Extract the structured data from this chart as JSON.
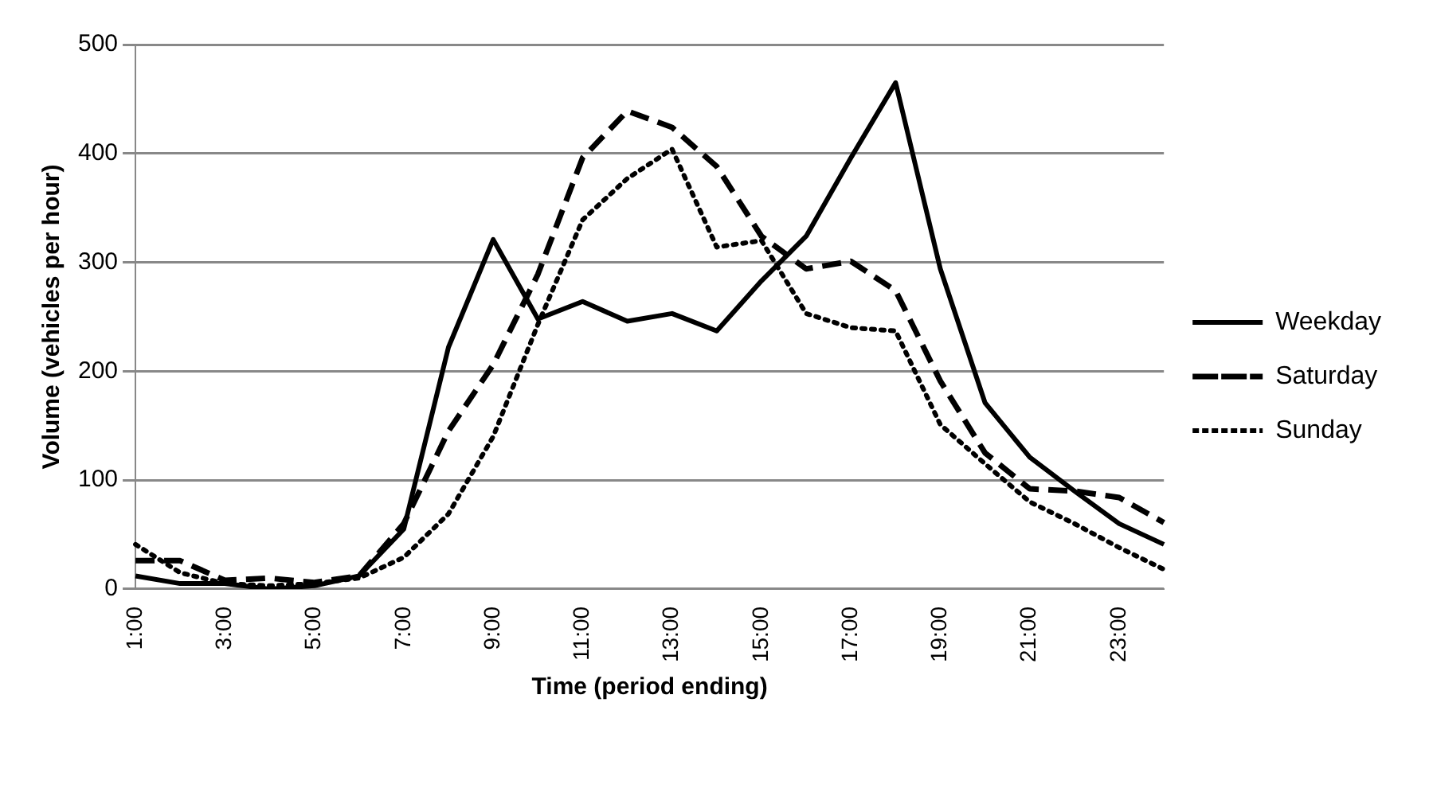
{
  "chart_data": {
    "type": "line",
    "xlabel": "Time (period ending)",
    "ylabel": "Volume (vehicles per hour)",
    "categories": [
      "1:00",
      null,
      "3:00",
      null,
      "5:00",
      null,
      "7:00",
      null,
      "9:00",
      null,
      "11:00",
      null,
      "13:00",
      null,
      "15:00",
      null,
      "17:00",
      null,
      "19:00",
      null,
      "21:00",
      null,
      "23:00",
      null
    ],
    "series": [
      {
        "name": "Weekday",
        "color": "#000000",
        "line_style": "solid",
        "values": [
          12,
          5,
          5,
          0,
          3,
          12,
          55,
          222,
          321,
          248,
          264,
          246,
          253,
          237,
          283,
          324,
          396,
          465,
          294,
          171,
          121,
          90,
          60,
          41
        ]
      },
      {
        "name": "Saturday",
        "color": "#000000",
        "line_style": "dashed",
        "values": [
          26,
          26,
          8,
          10,
          6,
          12,
          60,
          145,
          206,
          289,
          396,
          439,
          424,
          388,
          324,
          294,
          301,
          274,
          191,
          125,
          92,
          90,
          84,
          61
        ]
      },
      {
        "name": "Sunday",
        "color": "#000000",
        "line_style": "dotted",
        "values": [
          41,
          15,
          5,
          3,
          5,
          10,
          29,
          69,
          140,
          243,
          339,
          377,
          404,
          314,
          320,
          253,
          240,
          237,
          151,
          115,
          80,
          60,
          38,
          18
        ]
      }
    ],
    "ylim": [
      0,
      500
    ],
    "yticks": [
      0,
      100,
      200,
      300,
      400,
      500
    ],
    "grid": "y",
    "legend": "right",
    "marker": "none"
  }
}
